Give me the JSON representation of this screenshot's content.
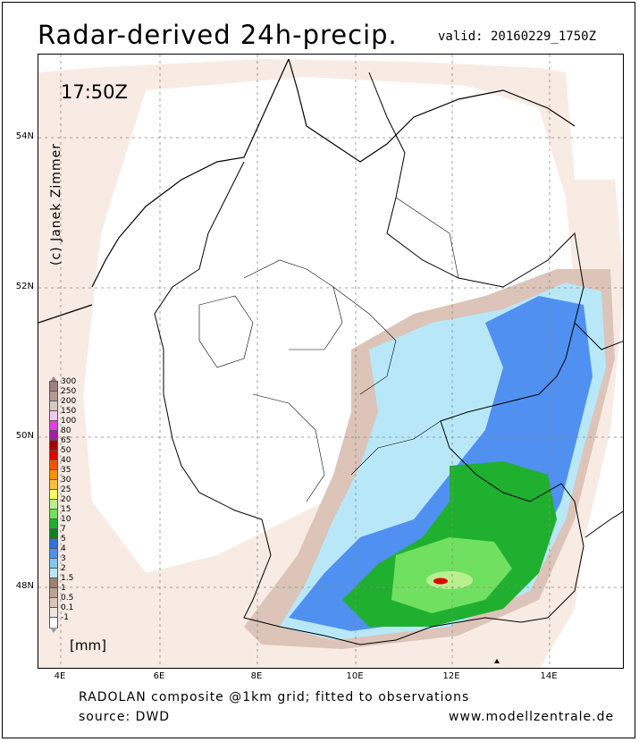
{
  "title": "Radar-derived 24h-precip.",
  "valid": "valid: 20160229_1750Z",
  "time_label": "17:50Z",
  "copyright": "(c) Janek Zimmer",
  "lat_labels": [
    "54N",
    "52N",
    "50N",
    "48N"
  ],
  "lon_labels": [
    "4E",
    "6E",
    "8E",
    "10E",
    "12E",
    "14E"
  ],
  "footer": {
    "line1": "RADOLAN composite @1km grid; fitted to observations",
    "line2": "source: DWD",
    "website": "www.modellzentrale.de"
  },
  "legend": {
    "unit": "[mm]",
    "classes": [
      {
        "label": "300",
        "color": "#a08080"
      },
      {
        "label": "250",
        "color": "#b89a8f"
      },
      {
        "label": "200",
        "color": "#d6c8c2"
      },
      {
        "label": "150",
        "color": "#f0c8f0"
      },
      {
        "label": "100",
        "color": "#e040e0"
      },
      {
        "label": "80",
        "color": "#a020a0"
      },
      {
        "label": "65",
        "color": "#a00000"
      },
      {
        "label": "50",
        "color": "#e00000"
      },
      {
        "label": "40",
        "color": "#ff5000"
      },
      {
        "label": "35",
        "color": "#ff9000"
      },
      {
        "label": "30",
        "color": "#ffc040"
      },
      {
        "label": "25",
        "color": "#ffff60"
      },
      {
        "label": "20",
        "color": "#b8f090"
      },
      {
        "label": "15",
        "color": "#70e060"
      },
      {
        "label": "10",
        "color": "#20b030"
      },
      {
        "label": "7",
        "color": "#108020"
      },
      {
        "label": "5",
        "color": "#3070e0"
      },
      {
        "label": "4",
        "color": "#5090f0"
      },
      {
        "label": "3",
        "color": "#80c8f8"
      },
      {
        "label": "2",
        "color": "#b8e8f8"
      },
      {
        "label": "1.5",
        "color": "#a08070"
      },
      {
        "label": "1",
        "color": "#c0a090"
      },
      {
        "label": "0.5",
        "color": "#dcc4b8"
      },
      {
        "label": "0.1",
        "color": "#f2e6e0"
      },
      {
        "label": "-1",
        "color": "#ffffff"
      }
    ]
  },
  "colors": {
    "coverage": "#f7ebe3",
    "trace": "#dcc4b8",
    "light": "#b8e8f8",
    "blue": "#5090f0",
    "darkblue": "#3070e0",
    "green": "#20b030",
    "lightgreen": "#70e060",
    "pale": "#b8f090",
    "max": "#e00000"
  }
}
